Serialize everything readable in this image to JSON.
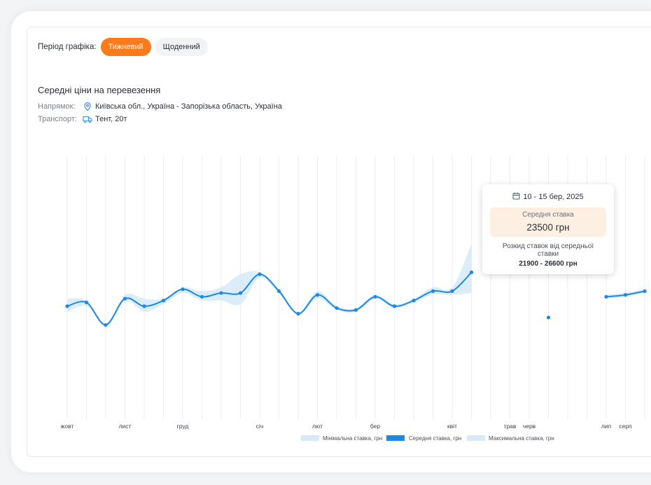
{
  "period": {
    "label": "Період графіка:",
    "options": [
      {
        "label": "Тижневий",
        "active": true
      },
      {
        "label": "Щоденний",
        "active": false
      }
    ]
  },
  "title": "Середні ціни на перевезення",
  "direction": {
    "label": "Напрямок:",
    "value": "Київська обл., Україна - Запорізька область, Україна",
    "icon": "location-pin-icon"
  },
  "transport": {
    "label": "Транспорт:",
    "value": "Тент, 20т",
    "icon": "truck-icon"
  },
  "colors": {
    "accent": "#ff7a1a",
    "line": "#1e88e5",
    "band": "#d6eaf9"
  },
  "tooltip": {
    "date": "10 - 15 бер, 2025",
    "avg_label": "Середня ставка",
    "avg_value": "23500 грн",
    "range_label": "Розкид ставок від середньої ставки",
    "range_value": "21900 - 26600 грн"
  },
  "chart_data": {
    "type": "line",
    "unit": "грн",
    "ylim": [
      16000,
      30000
    ],
    "x_ticks": [
      "жовт",
      "лист",
      "груд",
      "січ",
      "лют",
      "бер",
      "квіт",
      "трав",
      "черв",
      "лип",
      "серп"
    ],
    "x_tick_index": [
      0,
      3,
      6,
      10,
      13,
      16,
      20,
      23,
      24,
      28,
      29
    ],
    "legend": [
      "Мінімальна ставка, грн",
      "Середня ставка, грн",
      "Максимальна ставка, грн"
    ],
    "series": [
      {
        "name": "Середня ставка, грн",
        "values": [
          22000,
          22200,
          21000,
          22400,
          22000,
          22300,
          22900,
          22500,
          22700,
          22700,
          23700,
          22800,
          21600,
          22600,
          21900,
          21800,
          22500,
          22000,
          22300,
          22800,
          22800,
          23800,
          null,
          null,
          null,
          21400,
          null,
          null,
          22500,
          22600,
          22800
        ]
      },
      {
        "name": "Мінімальна ставка, грн",
        "values": [
          21700,
          22000,
          21000,
          22300,
          21700,
          22100,
          22700,
          22300,
          22300,
          22100,
          23500,
          22700,
          21600,
          22400,
          21800,
          21700,
          22400,
          21900,
          22200,
          22600,
          22600,
          22700,
          null,
          null,
          null,
          21400,
          null,
          null,
          22400,
          22500,
          22700
        ]
      },
      {
        "name": "Максимальна ставка, грн",
        "values": [
          22400,
          22300,
          21100,
          22600,
          22400,
          22400,
          23000,
          22800,
          23000,
          23700,
          23800,
          22900,
          21700,
          22800,
          22000,
          21900,
          22600,
          22100,
          22400,
          23000,
          23000,
          25300,
          null,
          null,
          null,
          21500,
          null,
          null,
          22600,
          22700,
          22900
        ]
      }
    ]
  }
}
